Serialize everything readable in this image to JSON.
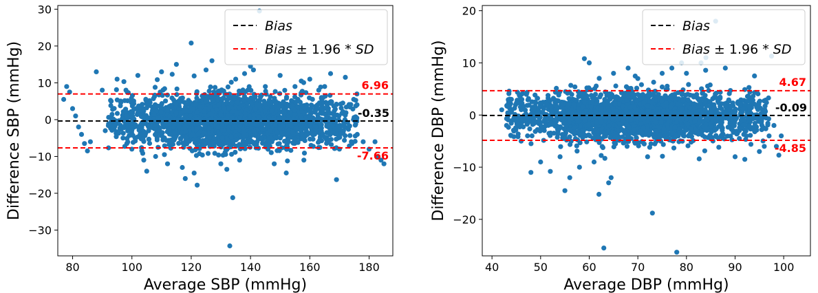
{
  "chart_data": [
    {
      "type": "scatter",
      "xlabel": "Average SBP (mmHg)",
      "ylabel": "Difference SBP (mmHg)",
      "xlim": [
        75,
        188
      ],
      "ylim": [
        -37,
        31
      ],
      "xticks": [
        80,
        100,
        120,
        140,
        160,
        180
      ],
      "yticks": [
        -30,
        -20,
        -10,
        0,
        10,
        20,
        30
      ],
      "xtick_labels": [
        "80",
        "100",
        "120",
        "140",
        "160",
        "180"
      ],
      "ytick_labels": [
        "−30",
        "−20",
        "−10",
        "0",
        "10",
        "20",
        "30"
      ],
      "bias": -0.35,
      "upper_loa": 6.96,
      "lower_loa": -7.66,
      "bias_label": "-0.35",
      "upper_label": "6.96",
      "lower_label": "-7.66",
      "legend": {
        "placement": "top-right",
        "entries": [
          "Bias",
          "Bias ± 1.96 * SD"
        ]
      },
      "colors": {
        "points": "#1f77b4",
        "bias": "#000000",
        "loa": "#ff0000"
      },
      "cloud": {
        "x_range": [
          92,
          176
        ],
        "center_spread": 3.5
      },
      "points": [
        [
          77,
          5.5
        ],
        [
          78,
          9
        ],
        [
          79,
          7.5
        ],
        [
          80,
          3
        ],
        [
          81,
          1
        ],
        [
          82,
          -2
        ],
        [
          83,
          -4
        ],
        [
          84,
          -6.5
        ],
        [
          85,
          -8.5
        ],
        [
          86,
          -6
        ],
        [
          88,
          13
        ],
        [
          90,
          8
        ],
        [
          91,
          -3
        ],
        [
          93,
          5
        ],
        [
          95,
          11
        ],
        [
          97,
          -5
        ],
        [
          98,
          8
        ],
        [
          100,
          -8
        ],
        [
          102,
          12
        ],
        [
          104,
          -11
        ],
        [
          105,
          -14
        ],
        [
          108,
          -10
        ],
        [
          110,
          13
        ],
        [
          112,
          -12
        ],
        [
          115,
          15
        ],
        [
          117,
          -13
        ],
        [
          118,
          -16
        ],
        [
          120,
          20.8
        ],
        [
          121,
          -14.5
        ],
        [
          122,
          -17.8
        ],
        [
          125,
          13.5
        ],
        [
          127,
          16
        ],
        [
          130,
          -12
        ],
        [
          132,
          -13.5
        ],
        [
          133,
          -34.3
        ],
        [
          134,
          -21.2
        ],
        [
          135,
          11
        ],
        [
          138,
          12.5
        ],
        [
          140,
          14.5
        ],
        [
          141,
          13.5
        ],
        [
          143,
          29.5
        ],
        [
          145,
          9
        ],
        [
          148,
          -12
        ],
        [
          150,
          12
        ],
        [
          155,
          9
        ],
        [
          158,
          -11
        ],
        [
          160,
          11
        ],
        [
          163,
          8
        ],
        [
          165,
          9
        ],
        [
          167,
          12.5
        ],
        [
          169,
          -16.3
        ],
        [
          170,
          -8
        ],
        [
          172,
          11.5
        ],
        [
          174,
          -6
        ],
        [
          176,
          -4
        ],
        [
          178,
          -6
        ],
        [
          180,
          -8
        ],
        [
          182,
          -6
        ],
        [
          183,
          -10
        ],
        [
          184,
          -11
        ],
        [
          185,
          -12
        ]
      ]
    },
    {
      "type": "scatter",
      "xlabel": "Average DBP (mmHg)",
      "ylabel": "Difference DBP (mmHg)",
      "xlim": [
        38,
        105.5
      ],
      "ylim": [
        -27,
        21
      ],
      "xticks": [
        40,
        50,
        60,
        70,
        80,
        90,
        100
      ],
      "yticks": [
        -20,
        -10,
        0,
        10,
        20
      ],
      "xtick_labels": [
        "40",
        "50",
        "60",
        "70",
        "80",
        "90",
        "100"
      ],
      "ytick_labels": [
        "−20",
        "−10",
        "0",
        "10",
        "20"
      ],
      "bias": -0.09,
      "upper_loa": 4.67,
      "lower_loa": -4.85,
      "bias_label": "-0.09",
      "upper_label": "4.67",
      "lower_label": "-4.85",
      "legend": {
        "placement": "top-right",
        "entries": [
          "Bias",
          "Bias ± 1.96 * SD"
        ]
      },
      "colors": {
        "points": "#1f77b4",
        "bias": "#000000",
        "loa": "#ff0000"
      },
      "cloud": {
        "x_range": [
          43,
          97
        ],
        "center_spread": 2.3
      },
      "points": [
        [
          42,
          1
        ],
        [
          43,
          -2
        ],
        [
          44,
          3
        ],
        [
          46,
          -5
        ],
        [
          48,
          -11
        ],
        [
          50,
          -9
        ],
        [
          52,
          -10.8
        ],
        [
          54,
          -8
        ],
        [
          55,
          -14.5
        ],
        [
          56,
          -12
        ],
        [
          58,
          -10
        ],
        [
          59,
          10.8
        ],
        [
          60,
          10
        ],
        [
          61,
          -9
        ],
        [
          62,
          -15.2
        ],
        [
          63,
          -25.5
        ],
        [
          64,
          -13
        ],
        [
          64.5,
          -12
        ],
        [
          65,
          8
        ],
        [
          68,
          9
        ],
        [
          70,
          7
        ],
        [
          72,
          -8
        ],
        [
          73,
          -18.8
        ],
        [
          75,
          8
        ],
        [
          77,
          9
        ],
        [
          78,
          -26.3
        ],
        [
          79,
          10
        ],
        [
          80,
          8
        ],
        [
          83,
          10
        ],
        [
          84,
          11
        ],
        [
          86,
          18
        ],
        [
          88,
          9
        ],
        [
          90,
          -8
        ],
        [
          92,
          -8.5
        ],
        [
          94,
          7.5
        ],
        [
          95,
          -7
        ],
        [
          96,
          -6
        ],
        [
          97,
          -4
        ],
        [
          97.5,
          11.3
        ],
        [
          98,
          -2
        ],
        [
          98.5,
          -6
        ],
        [
          99,
          -7.7
        ],
        [
          99.5,
          -4
        ]
      ]
    }
  ]
}
